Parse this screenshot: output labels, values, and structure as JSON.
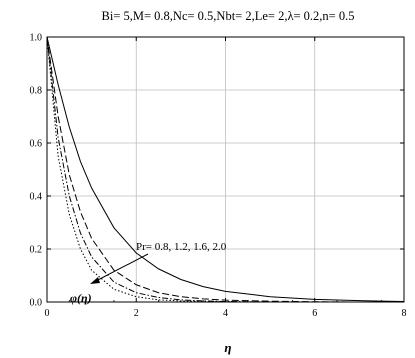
{
  "chart_data": {
    "type": "line",
    "title": "Bi= 5,M= 0.8,Nc= 0.5,Nbt= 2,Le= 2,λ= 0.2,n= 0.5",
    "xlabel": "η",
    "ylabel": "",
    "xlim": [
      0,
      8
    ],
    "ylim": [
      0,
      1.0
    ],
    "x_ticks": [
      "0",
      "2",
      "4",
      "6",
      "8"
    ],
    "y_ticks": [
      "0.0",
      "0.2",
      "0.4",
      "0.6",
      "0.8",
      "1.0"
    ],
    "grid": true,
    "annotation": "Pr= 0.8, 1.2, 1.6, 2.0",
    "curve_label": "φ(η)",
    "series": [
      {
        "style": "solid",
        "x": [
          0,
          0.25,
          0.5,
          0.75,
          1,
          1.5,
          2,
          2.5,
          3,
          3.5,
          4,
          5,
          6,
          7,
          8
        ],
        "y": [
          1.0,
          0.82,
          0.66,
          0.53,
          0.43,
          0.28,
          0.185,
          0.125,
          0.085,
          0.058,
          0.04,
          0.02,
          0.01,
          0.005,
          0.002
        ]
      },
      {
        "style": "longdash",
        "x": [
          0,
          0.25,
          0.5,
          0.75,
          1,
          1.5,
          2,
          2.5,
          3,
          3.5,
          4,
          5,
          6,
          7,
          8
        ],
        "y": [
          1.0,
          0.7,
          0.48,
          0.34,
          0.24,
          0.12,
          0.065,
          0.035,
          0.02,
          0.012,
          0.007,
          0.003,
          0.001,
          0.0,
          0.0
        ]
      },
      {
        "style": "dashdot",
        "x": [
          0,
          0.25,
          0.5,
          0.75,
          1,
          1.5,
          2,
          2.5,
          3,
          3.5,
          4,
          5,
          6,
          7,
          8
        ],
        "y": [
          1.0,
          0.62,
          0.4,
          0.26,
          0.17,
          0.075,
          0.035,
          0.017,
          0.008,
          0.004,
          0.002,
          0.0,
          0.0,
          0.0,
          0.0
        ]
      },
      {
        "style": "dotted",
        "x": [
          0,
          0.25,
          0.5,
          0.75,
          1,
          1.5,
          2,
          2.5,
          3,
          3.5,
          4,
          5,
          6,
          7,
          8
        ],
        "y": [
          1.0,
          0.55,
          0.33,
          0.2,
          0.12,
          0.048,
          0.02,
          0.008,
          0.004,
          0.002,
          0.001,
          0.0,
          0.0,
          0.0,
          0.0
        ]
      }
    ]
  }
}
